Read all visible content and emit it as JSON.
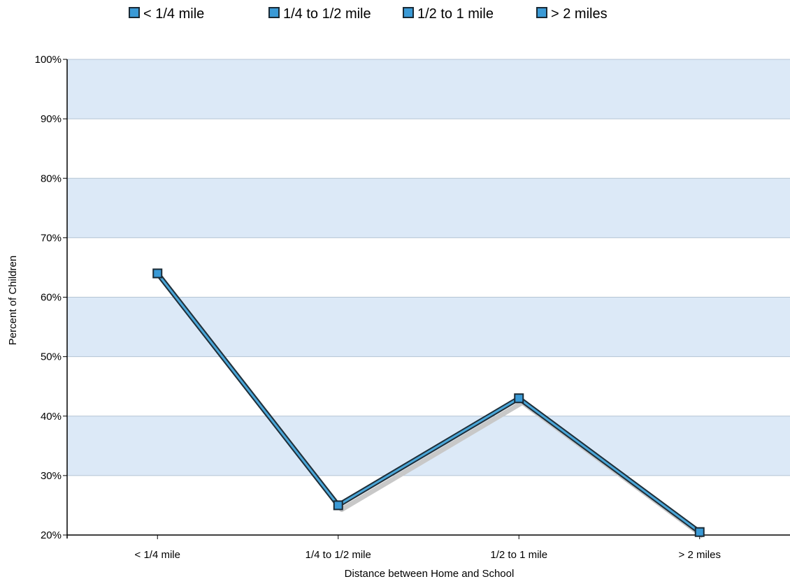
{
  "chart_data": {
    "type": "line",
    "categories": [
      "< 1/4 mile",
      "1/4 to 1/2 mile",
      "1/2 to 1 mile",
      "> 2 miles"
    ],
    "values": [
      64,
      25,
      43,
      20.5
    ],
    "xlabel": "Distance between Home and School",
    "ylabel": "Percent of Children",
    "ylim": [
      20,
      100
    ],
    "yticks": [
      "20%",
      "30%",
      "40%",
      "50%",
      "60%",
      "70%",
      "80%",
      "90%",
      "100%"
    ],
    "grid": true,
    "banded_background": true,
    "legend": {
      "placement": "top",
      "entries": [
        "< 1/4 mile",
        "1/4 to 1/2 mile",
        "1/2 to 1 mile",
        "> 2 miles"
      ]
    },
    "colors": {
      "band": "#dce9f7",
      "gridline": "#b4c4d4",
      "line_outer": "#1f2f3a",
      "line_inner": "#4aa6d8",
      "marker_fill": "#3a9ad6",
      "marker_border": "#1a2a35",
      "shadow": "#c8c8c8",
      "axis": "#000000"
    }
  }
}
